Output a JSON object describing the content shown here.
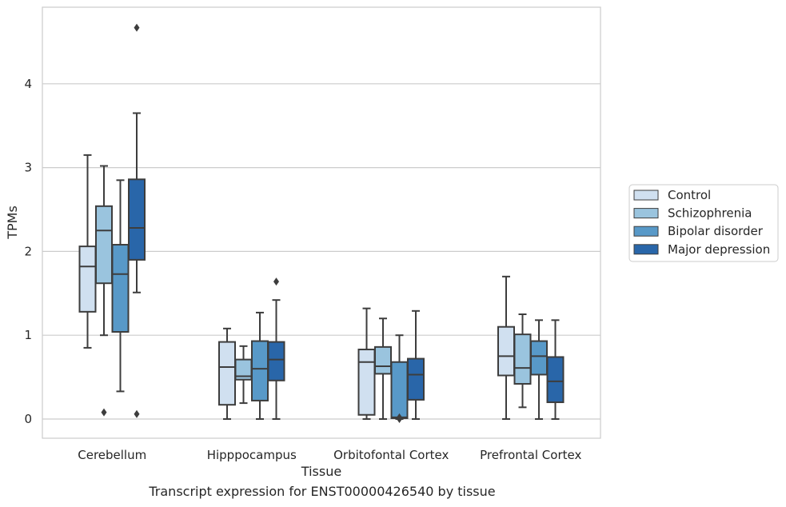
{
  "chart_data": {
    "type": "boxplot",
    "xlabel": "Tissue",
    "ylabel": "TPMs",
    "ylim": [
      -0.22,
      4.95
    ],
    "yticks": [
      0,
      1,
      2,
      3,
      4
    ],
    "grid": "horizontal",
    "legend_position": "right",
    "categories": [
      "Cerebellum",
      "Hipppocampus",
      "Orbitofontal Cortex",
      "Prefrontal Cortex"
    ],
    "series": [
      {
        "name": "Control",
        "color": "#d0e0f0",
        "boxes": [
          {
            "whislo": 0.85,
            "q1": 1.28,
            "med": 1.82,
            "q3": 2.06,
            "whishi": 3.15,
            "fliers": []
          },
          {
            "whislo": 0.0,
            "q1": 0.17,
            "med": 0.62,
            "q3": 0.92,
            "whishi": 1.08,
            "fliers": []
          },
          {
            "whislo": 0.0,
            "q1": 0.05,
            "med": 0.68,
            "q3": 0.83,
            "whishi": 1.32,
            "fliers": []
          },
          {
            "whislo": 0.0,
            "q1": 0.52,
            "med": 0.75,
            "q3": 1.1,
            "whishi": 1.7,
            "fliers": []
          }
        ]
      },
      {
        "name": "Schizophrenia",
        "color": "#9ac4de",
        "boxes": [
          {
            "whislo": 1.0,
            "q1": 1.62,
            "med": 2.25,
            "q3": 2.54,
            "whishi": 3.02,
            "fliers": [
              0.08
            ]
          },
          {
            "whislo": 0.19,
            "q1": 0.47,
            "med": 0.51,
            "q3": 0.71,
            "whishi": 0.87,
            "fliers": []
          },
          {
            "whislo": 0.0,
            "q1": 0.54,
            "med": 0.63,
            "q3": 0.86,
            "whishi": 1.2,
            "fliers": []
          },
          {
            "whislo": 0.14,
            "q1": 0.42,
            "med": 0.61,
            "q3": 1.01,
            "whishi": 1.25,
            "fliers": []
          }
        ]
      },
      {
        "name": "Bipolar disorder",
        "color": "#5899c8",
        "boxes": [
          {
            "whislo": 0.33,
            "q1": 1.04,
            "med": 1.73,
            "q3": 2.08,
            "whishi": 2.85,
            "fliers": []
          },
          {
            "whislo": 0.0,
            "q1": 0.22,
            "med": 0.6,
            "q3": 0.93,
            "whishi": 1.27,
            "fliers": []
          },
          {
            "whislo": 0.0,
            "q1": 0.01,
            "med": 0.02,
            "q3": 0.68,
            "whishi": 1.0,
            "fliers": [
              0.0,
              0.02
            ]
          },
          {
            "whislo": 0.0,
            "q1": 0.53,
            "med": 0.75,
            "q3": 0.93,
            "whishi": 1.18,
            "fliers": []
          }
        ]
      },
      {
        "name": "Major depression",
        "color": "#2966a9",
        "boxes": [
          {
            "whislo": 1.51,
            "q1": 1.9,
            "med": 2.28,
            "q3": 2.86,
            "whishi": 3.65,
            "fliers": [
              0.06,
              4.67
            ]
          },
          {
            "whislo": 0.0,
            "q1": 0.46,
            "med": 0.71,
            "q3": 0.92,
            "whishi": 1.42,
            "fliers": [
              1.64
            ]
          },
          {
            "whislo": 0.0,
            "q1": 0.23,
            "med": 0.53,
            "q3": 0.72,
            "whishi": 1.29,
            "fliers": []
          },
          {
            "whislo": 0.0,
            "q1": 0.2,
            "med": 0.45,
            "q3": 0.74,
            "whishi": 1.18,
            "fliers": []
          }
        ]
      }
    ]
  },
  "caption": "Transcript expression for ENST00000426540 by tissue"
}
